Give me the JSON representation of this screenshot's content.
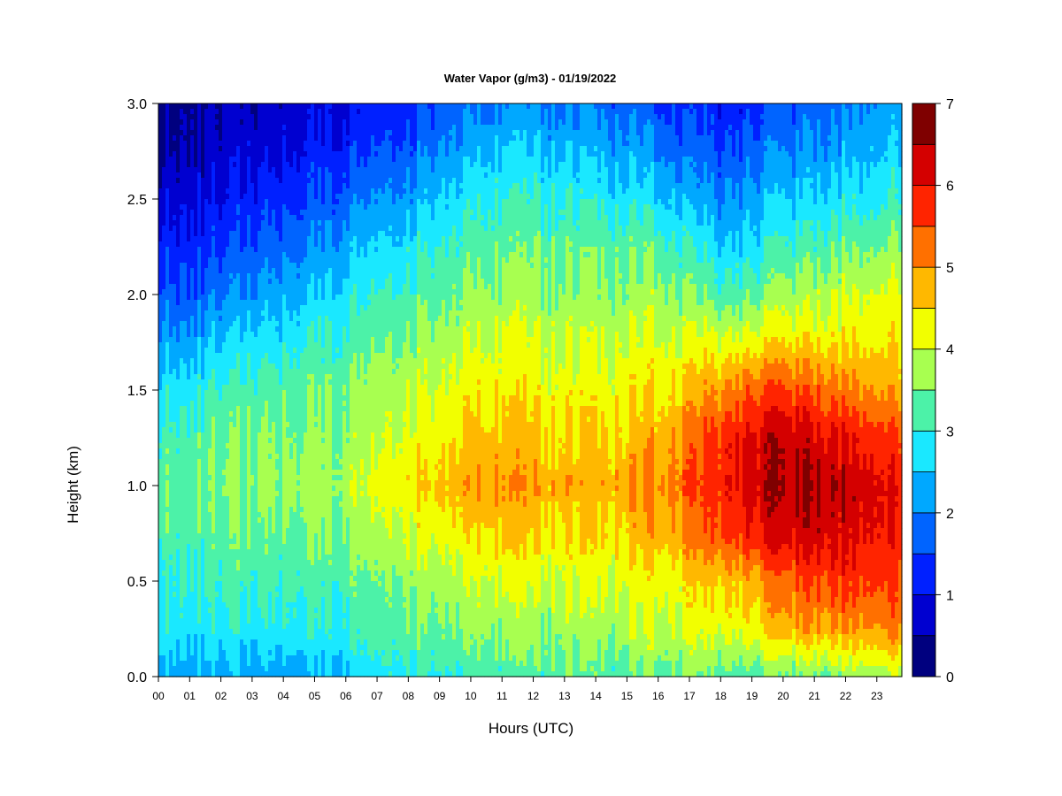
{
  "chart_data": {
    "type": "heatmap",
    "title": "Water Vapor (g/m3) - 01/19/2022",
    "xlabel": "Hours (UTC)",
    "ylabel": "Height (km)",
    "xlim": [
      0,
      23.8
    ],
    "ylim": [
      0,
      3.0
    ],
    "x_ticks": [
      "00",
      "01",
      "02",
      "03",
      "04",
      "05",
      "06",
      "07",
      "08",
      "09",
      "10",
      "11",
      "12",
      "13",
      "14",
      "15",
      "16",
      "17",
      "18",
      "19",
      "20",
      "21",
      "22",
      "23"
    ],
    "y_ticks": [
      "0.0",
      "0.5",
      "1.0",
      "1.5",
      "2.0",
      "2.5",
      "3.0"
    ],
    "colorbar": {
      "levels": [
        0,
        0.5,
        1,
        1.5,
        2,
        2.5,
        3,
        3.5,
        4,
        4.5,
        5,
        5.5,
        6,
        6.5,
        7
      ],
      "colors": [
        "#00007F",
        "#0000D0",
        "#0020FF",
        "#0064FF",
        "#00A8FF",
        "#1AE8FF",
        "#4CF2A8",
        "#A8FF50",
        "#F2FF00",
        "#FFB800",
        "#FF7000",
        "#FF2400",
        "#D40000",
        "#7F0000"
      ],
      "tick_labels": [
        "0",
        "1",
        "2",
        "3",
        "4",
        "5",
        "6",
        "7"
      ]
    },
    "hours": [
      0,
      1,
      2,
      3,
      4,
      5,
      6,
      7,
      8,
      9,
      10,
      11,
      12,
      13,
      14,
      15,
      16,
      17,
      18,
      19,
      20,
      21,
      22,
      23,
      23.8
    ],
    "heights_km": [
      0.0,
      0.25,
      0.5,
      0.75,
      1.0,
      1.25,
      1.5,
      1.75,
      2.0,
      2.25,
      2.5,
      2.75,
      3.0
    ],
    "values_g_m3": [
      [
        2.4,
        2.3,
        2.3,
        2.2,
        2.2,
        2.3,
        2.5,
        2.8,
        3.0,
        3.0,
        3.1,
        3.1,
        3.2,
        3.3,
        3.2,
        3.2,
        3.4,
        3.4,
        3.3,
        3.2,
        3.3,
        3.4,
        3.6,
        3.8,
        3.9
      ],
      [
        2.9,
        2.8,
        2.8,
        2.8,
        2.9,
        2.9,
        3.0,
        3.2,
        3.4,
        3.5,
        3.6,
        3.6,
        3.6,
        3.7,
        3.7,
        3.8,
        4.0,
        4.1,
        4.1,
        4.3,
        4.7,
        4.9,
        5.0,
        5.1,
        5.2
      ],
      [
        3.0,
        3.1,
        3.1,
        3.1,
        3.1,
        3.2,
        3.3,
        3.4,
        3.7,
        3.8,
        3.9,
        4.0,
        4.0,
        4.0,
        4.0,
        4.1,
        4.2,
        4.4,
        4.6,
        4.8,
        5.2,
        5.6,
        5.7,
        5.7,
        5.6
      ],
      [
        3.2,
        3.3,
        3.3,
        3.4,
        3.4,
        3.5,
        3.6,
        3.8,
        4.1,
        4.3,
        4.4,
        4.5,
        4.5,
        4.4,
        4.4,
        4.6,
        4.8,
        5.1,
        5.5,
        5.9,
        6.2,
        6.3,
        6.2,
        6.1,
        5.8
      ],
      [
        3.3,
        3.4,
        3.5,
        3.6,
        3.6,
        3.7,
        3.8,
        4.1,
        4.4,
        4.7,
        4.9,
        4.9,
        4.9,
        4.8,
        4.7,
        4.9,
        5.1,
        5.4,
        5.8,
        6.2,
        6.4,
        6.5,
        6.4,
        6.2,
        5.9
      ],
      [
        3.1,
        3.3,
        3.4,
        3.5,
        3.5,
        3.6,
        3.7,
        3.9,
        4.2,
        4.4,
        4.6,
        4.6,
        4.6,
        4.5,
        4.5,
        4.6,
        4.8,
        5.2,
        5.7,
        6.1,
        6.3,
        6.2,
        6.0,
        5.8,
        5.6
      ],
      [
        2.7,
        2.9,
        3.1,
        3.2,
        3.3,
        3.4,
        3.5,
        3.7,
        3.9,
        4.1,
        4.3,
        4.3,
        4.3,
        4.2,
        4.2,
        4.3,
        4.4,
        4.6,
        5.0,
        5.4,
        5.5,
        5.4,
        5.2,
        5.0,
        4.8
      ],
      [
        2.2,
        2.3,
        2.5,
        2.7,
        2.8,
        3.0,
        3.2,
        3.4,
        3.6,
        3.8,
        3.9,
        4.0,
        4.0,
        3.9,
        3.9,
        4.0,
        4.1,
        4.1,
        4.1,
        4.2,
        4.4,
        4.4,
        4.4,
        4.5,
        4.5
      ],
      [
        1.6,
        1.7,
        1.9,
        2.1,
        2.3,
        2.5,
        2.8,
        3.0,
        3.2,
        3.4,
        3.6,
        3.6,
        3.7,
        3.6,
        3.6,
        3.6,
        3.7,
        3.5,
        3.2,
        3.3,
        3.6,
        3.8,
        4.0,
        4.1,
        4.2
      ],
      [
        1.2,
        1.3,
        1.4,
        1.6,
        1.8,
        2.0,
        2.3,
        2.5,
        2.8,
        3.1,
        3.2,
        3.3,
        3.4,
        3.3,
        3.3,
        3.3,
        3.3,
        3.0,
        2.5,
        2.7,
        3.0,
        3.2,
        3.4,
        3.5,
        3.6
      ],
      [
        0.8,
        0.9,
        1.0,
        1.2,
        1.3,
        1.5,
        1.8,
        2.0,
        2.2,
        2.6,
        2.8,
        2.9,
        3.0,
        2.9,
        2.8,
        2.8,
        2.6,
        2.3,
        2.0,
        2.2,
        2.4,
        2.6,
        2.8,
        2.9,
        3.1
      ],
      [
        0.5,
        0.6,
        0.7,
        0.8,
        0.9,
        1.1,
        1.3,
        1.5,
        1.7,
        2.1,
        2.3,
        2.4,
        2.5,
        2.4,
        2.3,
        2.2,
        2.0,
        1.7,
        1.5,
        1.7,
        1.9,
        2.1,
        2.3,
        2.5,
        2.6
      ],
      [
        0.3,
        0.4,
        0.5,
        0.6,
        0.7,
        0.8,
        0.9,
        1.1,
        1.3,
        1.6,
        1.8,
        1.9,
        2.0,
        1.9,
        1.8,
        1.7,
        1.5,
        1.3,
        1.1,
        1.3,
        1.5,
        1.7,
        1.9,
        2.1,
        2.3
      ]
    ]
  }
}
